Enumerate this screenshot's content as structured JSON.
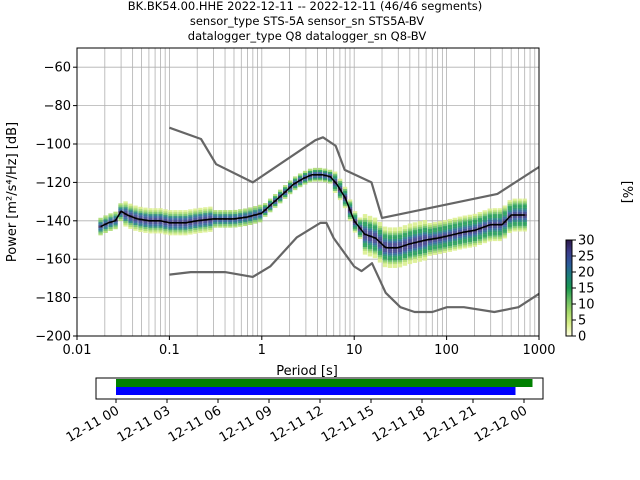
{
  "title_lines": [
    "BK.BK54.00.HHE   2022-12-11 -- 2022-12-11  (46/46 segments)",
    "sensor_type STS-5A sensor_sn STS5A-BV",
    "datalogger_type Q8 datalogger_sn Q8-BV"
  ],
  "chart_data": {
    "type": "heatmap",
    "xlabel": "Period [s]",
    "ylabel": "Power [m²/s⁴/Hz] [dB]",
    "xscale": "log",
    "xlim": [
      0.01,
      1000
    ],
    "ylim": [
      -200,
      -50
    ],
    "x_tick_labels": [
      "0.01",
      "0.1",
      "1",
      "10",
      "100",
      "1000"
    ],
    "y_tick_labels": [
      "−200",
      "−180",
      "−160",
      "−140",
      "−120",
      "−100",
      "−80",
      "−60"
    ],
    "grid": true,
    "colorbar": {
      "label": "[%]",
      "ticks": [
        "0",
        "5",
        "10",
        "15",
        "20",
        "25",
        "30"
      ],
      "range": [
        0,
        30
      ],
      "colormap": [
        "#ffffe0",
        "#d9ef8b",
        "#a6d96a",
        "#66bd63",
        "#1a9850",
        "#1b7f7a",
        "#2c5a9a",
        "#3b3c8a",
        "#2d1a4a"
      ]
    },
    "series": [
      {
        "role": "mode",
        "color": "#000000",
        "x": [
          0.018,
          0.022,
          0.026,
          0.03,
          0.035,
          0.045,
          0.06,
          0.08,
          0.1,
          0.15,
          0.2,
          0.3,
          0.5,
          0.7,
          1.0,
          1.3,
          1.7,
          2.2,
          2.8,
          3.5,
          4.5,
          5.5,
          6.5,
          8,
          10,
          13,
          17,
          22,
          30,
          40,
          60,
          80,
          100,
          150,
          200,
          300,
          400,
          500,
          700
        ],
        "y": [
          -143,
          -141,
          -140,
          -135,
          -137,
          -139,
          -140,
          -140,
          -141,
          -141,
          -140,
          -139,
          -139,
          -138,
          -136,
          -131,
          -126,
          -121,
          -118,
          -116,
          -116,
          -117,
          -121,
          -128,
          -140,
          -147,
          -149,
          -154,
          -154,
          -152,
          -150,
          -149,
          -148,
          -146,
          -145,
          -142,
          -142,
          -137,
          -137
        ]
      },
      {
        "role": "noise-model-upper",
        "color": "#666666",
        "x": [
          0.1,
          0.22,
          0.32,
          0.8,
          3.8,
          4.6,
          6.3,
          7.9,
          15.4,
          20,
          354.8,
          1000
        ],
        "y": [
          -91.5,
          -97.4,
          -110.5,
          -120,
          -98,
          -96.5,
          -101,
          -113.5,
          -120,
          -138.5,
          -126,
          -112
        ]
      },
      {
        "role": "noise-model-lower",
        "color": "#666666",
        "x": [
          0.1,
          0.17,
          0.4,
          0.8,
          1.24,
          2.4,
          4.3,
          5,
          6,
          10,
          12,
          15.6,
          21.9,
          31.6,
          45,
          70,
          101,
          154,
          328,
          600,
          1000
        ],
        "y": [
          -168,
          -166.7,
          -166.7,
          -169.2,
          -163.7,
          -148.6,
          -141.1,
          -141.1,
          -149,
          -163.8,
          -166.2,
          -162.1,
          -177.5,
          -185,
          -187.5,
          -187.5,
          -185,
          -185,
          -187.5,
          -185,
          -178
        ]
      }
    ]
  },
  "time_axis": {
    "tick_labels": [
      "12-11 00",
      "12-11 03",
      "12-11 06",
      "12-11 09",
      "12-11 12",
      "12-11 15",
      "12-11 18",
      "12-11 21",
      "12-12 00"
    ],
    "coverage": [
      {
        "name": "data",
        "color": "#008000",
        "start": "12-11 00:00",
        "end": "12-12 00:30"
      },
      {
        "name": "used",
        "color": "#0000ff",
        "start": "12-11 00:00",
        "end": "12-11 23:30"
      }
    ]
  }
}
